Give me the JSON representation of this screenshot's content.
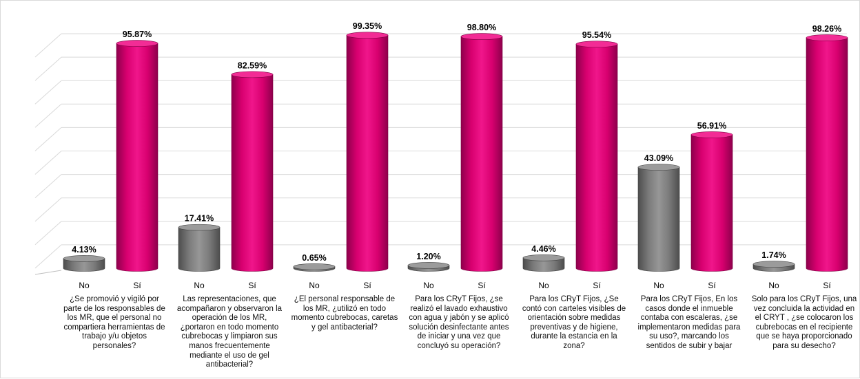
{
  "chart_data": {
    "type": "bar",
    "style": "3d-cylinder",
    "ylim": [
      0,
      100
    ],
    "grid": true,
    "series_colors": {
      "No": "#808080",
      "Sí": "#e6007e"
    },
    "groups": [
      {
        "question": "¿Se promovió y vigiló por parte de los responsables de los MR, que el personal no compartiera herramientas de trabajo y/u objetos personales?",
        "bars": [
          {
            "category": "No",
            "value": 4.13,
            "label": "4.13%"
          },
          {
            "category": "Sí",
            "value": 95.87,
            "label": "95.87%"
          }
        ]
      },
      {
        "question": "Las representaciones, que acompañaron y observaron la operación de los MR, ¿portaron en todo momento cubrebocas y limpiaron sus manos frecuentemente mediante el uso de gel antibacterial?",
        "bars": [
          {
            "category": "No",
            "value": 17.41,
            "label": "17.41%"
          },
          {
            "category": "Sí",
            "value": 82.59,
            "label": "82.59%"
          }
        ]
      },
      {
        "question": "¿El personal responsable de los MR, ¿utilizó en todo momento cubrebocas, caretas y gel antibacterial?",
        "bars": [
          {
            "category": "No",
            "value": 0.65,
            "label": "0.65%"
          },
          {
            "category": "Sí",
            "value": 99.35,
            "label": "99.35%"
          }
        ]
      },
      {
        "question": "Para los CRyT Fijos, ¿se realizó el lavado exhaustivo con agua y jabón y se aplicó solución desinfectante antes de iniciar y una vez que concluyó su operación?",
        "bars": [
          {
            "category": "No",
            "value": 1.2,
            "label": "1.20%"
          },
          {
            "category": "Sí",
            "value": 98.8,
            "label": "98.80%"
          }
        ]
      },
      {
        "question": "Para los CRyT Fijos, ¿Se contó con carteles visibles de orientación sobre medidas preventivas y de higiene, durante la estancia en la zona?",
        "bars": [
          {
            "category": "No",
            "value": 4.46,
            "label": "4.46%"
          },
          {
            "category": "Sí",
            "value": 95.54,
            "label": "95.54%"
          }
        ]
      },
      {
        "question": "Para los CRyT Fijos, En los casos donde el inmueble contaba con escaleras, ¿se implementaron medidas para su uso?, marcando los sentidos de subir y bajar",
        "bars": [
          {
            "category": "No",
            "value": 43.09,
            "label": "43.09%"
          },
          {
            "category": "Sí",
            "value": 56.91,
            "label": "56.91%"
          }
        ]
      },
      {
        "question": "Solo para los CRyT Fijos, una vez concluida la actividad en el CRYT , ¿se colocaron los cubrebocas en el recipiente que se haya proporcionado para su desecho?",
        "bars": [
          {
            "category": "No",
            "value": 1.74,
            "label": "1.74%"
          },
          {
            "category": "Sí",
            "value": 98.26,
            "label": "98.26%"
          }
        ]
      }
    ]
  }
}
